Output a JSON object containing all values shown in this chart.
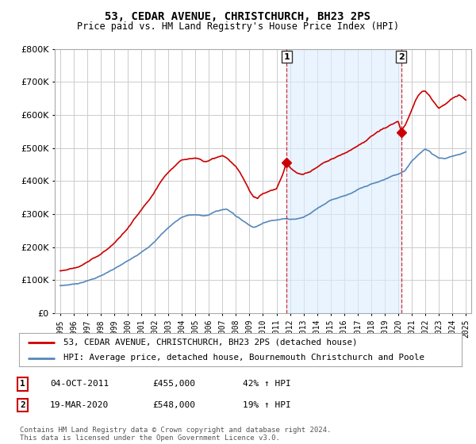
{
  "title": "53, CEDAR AVENUE, CHRISTCHURCH, BH23 2PS",
  "subtitle": "Price paid vs. HM Land Registry's House Price Index (HPI)",
  "legend_line1": "53, CEDAR AVENUE, CHRISTCHURCH, BH23 2PS (detached house)",
  "legend_line2": "HPI: Average price, detached house, Bournemouth Christchurch and Poole",
  "footnote": "Contains HM Land Registry data © Crown copyright and database right 2024.\nThis data is licensed under the Open Government Licence v3.0.",
  "sale1_date_str": "04-OCT-2011",
  "sale1_price_str": "£455,000",
  "sale1_hpi_str": "42% ↑ HPI",
  "sale2_date_str": "19-MAR-2020",
  "sale2_price_str": "£548,000",
  "sale2_hpi_str": "19% ↑ HPI",
  "ylim": [
    0,
    800000
  ],
  "yticks": [
    0,
    100000,
    200000,
    300000,
    400000,
    500000,
    600000,
    700000,
    800000
  ],
  "red_color": "#cc0000",
  "blue_color": "#5588bb",
  "shade_color": "#ddeeff",
  "dashed_color": "#cc0000",
  "background_color": "#ffffff",
  "grid_color": "#cccccc",
  "sale1_year": 2011.75,
  "sale2_year": 2020.21,
  "sale1_value": 455000,
  "sale2_value": 548000,
  "xlim_left": 1994.6,
  "xlim_right": 2025.4
}
